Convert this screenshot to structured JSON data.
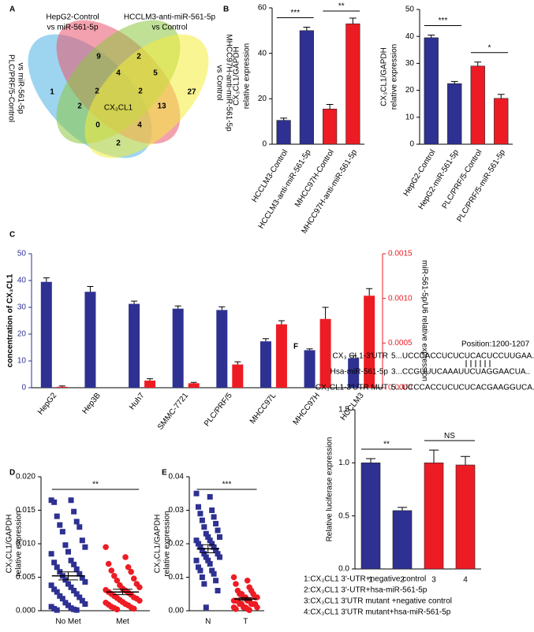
{
  "chart_data": [
    {
      "type": "venn",
      "panel": "A",
      "sets": [
        {
          "label": [
            "PLC/PRF/5-Control",
            "vs miR-561-5p"
          ],
          "color": "#4db3e6"
        },
        {
          "label": [
            "HepG2-Control",
            "vs miR-561-5p"
          ],
          "color": "#e9546b"
        },
        {
          "label": [
            "HCCLM3-anti-miR-561-5p",
            "vs Control"
          ],
          "color": "#8dc63f"
        },
        {
          "label": [
            "MHCC97H-anti-miR-561-5p",
            "vs Control"
          ],
          "color": "#f4ec3a"
        }
      ],
      "values": [
        9,
        2,
        4,
        5,
        1,
        2,
        2,
        27,
        2,
        13,
        0,
        4,
        2
      ],
      "center_label": "CX₃CL1",
      "center_color": "#ed1c24"
    },
    {
      "type": "bar",
      "panel": "B",
      "ylabel": [
        "CX₃CL1/GAPDH",
        "relative expression"
      ],
      "categories": [
        "HCCLM3-Control",
        "HCCLM3-anti-miR-561-5p",
        "MHCC97H-Control",
        "MHCC97H-anti-miR-561-5p"
      ],
      "values": [
        10.5,
        50,
        15.5,
        53
      ],
      "errors": [
        1,
        1.5,
        2,
        2.5
      ],
      "colors": [
        "#2e3192",
        "#2e3192",
        "#ed1c24",
        "#ed1c24"
      ],
      "ylim": [
        0,
        60
      ],
      "yticks": [
        0,
        20,
        40,
        60
      ],
      "annotations": [
        "***",
        "**"
      ]
    },
    {
      "type": "bar",
      "ylabel": [
        "CX₃CL1/GAPDH",
        "relative expression"
      ],
      "categories": [
        "HepG2-Control",
        "HepG2-miR-561-5p",
        "PLC/PRF/5-Control",
        "PLC/PRF/5-miR-561-5p"
      ],
      "values": [
        39.5,
        22.5,
        29,
        17
      ],
      "errors": [
        1,
        0.8,
        1.5,
        1.5
      ],
      "colors": [
        "#2e3192",
        "#2e3192",
        "#ed1c24",
        "#ed1c24"
      ],
      "ylim": [
        0,
        50
      ],
      "yticks": [
        0,
        10,
        20,
        30,
        40,
        50
      ],
      "annotations": [
        "***",
        "*"
      ]
    },
    {
      "type": "grouped-bar",
      "panel": "C",
      "ylabel": "concentration of CX₃CL1",
      "y2label": "miR-561-5p/U6  relative expression",
      "categories": [
        "HepG2",
        "Hep3B",
        "Huh7",
        "SMMC-7721",
        "PLC/PRF/5",
        "MHCC97L",
        "MHCC97H",
        "HCCLM3"
      ],
      "series": [
        {
          "color": "#2e3192",
          "values": [
            39.5,
            35.8,
            31.3,
            29.5,
            29,
            17.3,
            14,
            11
          ],
          "errors": [
            1.5,
            2,
            1,
            1,
            1.2,
            1,
            0.5,
            1
          ]
        },
        {
          "color": "#ed1c24",
          "axis": "y2",
          "values": [
            1e-05,
            0,
            8e-05,
            5e-05,
            0.00026,
            0.00071,
            0.00077,
            0.00103
          ],
          "errors": [
            1e-05,
            0,
            2e-05,
            1e-05,
            3e-05,
            4e-05,
            0.00013,
            8e-05
          ]
        }
      ],
      "ylim": [
        0,
        50
      ],
      "yticks": [
        0,
        10,
        20,
        30,
        40,
        50
      ],
      "y2lim": [
        0,
        0.0015
      ],
      "y2ticks": [
        {
          "value": 0,
          "label": "0.0000"
        },
        {
          "value": 0.0005,
          "label": "0.0005"
        },
        {
          "value": 0.001,
          "label": "0.0010"
        },
        {
          "value": 0.0015,
          "label": "0.0015"
        }
      ]
    },
    {
      "type": "dotplot",
      "panel": "D",
      "ylabel": [
        "CX₃CL1/GAPDH",
        "relative expression"
      ],
      "groups": [
        {
          "name": "No Met",
          "color": "#2e3192",
          "marker": "square",
          "mean": 0.0052,
          "sem": 0.0006,
          "values": [
            0.0165,
            0.0165,
            0.0162,
            0.0148,
            0.0141,
            0.0133,
            0.0128,
            0.0125,
            0.0118,
            0.0105,
            0.0098,
            0.0095,
            0.0088,
            0.0085,
            0.0075,
            0.0072,
            0.0069,
            0.0065,
            0.0062,
            0.0058,
            0.0055,
            0.0052,
            0.0049,
            0.0046,
            0.0043,
            0.004,
            0.0038,
            0.0035,
            0.0032,
            0.003,
            0.0028,
            0.0025,
            0.0022,
            0.002,
            0.0018,
            0.0015,
            0.0012,
            0.001,
            0.0008,
            0.0006,
            0.0004,
            0.0003,
            0.0002,
            0.0001,
            0.0001
          ]
        },
        {
          "name": "Met",
          "color": "#ed1c24",
          "marker": "circle",
          "mean": 0.0028,
          "sem": 0.0004,
          "values": [
            0.0095,
            0.008,
            0.007,
            0.0065,
            0.006,
            0.0058,
            0.0052,
            0.0048,
            0.0045,
            0.004,
            0.0038,
            0.0035,
            0.0033,
            0.0031,
            0.003,
            0.0028,
            0.0027,
            0.0025,
            0.0024,
            0.0022,
            0.002,
            0.0019,
            0.0018,
            0.0016,
            0.0015,
            0.0013,
            0.0012,
            0.001,
            0.0009,
            0.0008,
            0.0006,
            0.0005,
            0.0004,
            0.0003,
            0.0002
          ]
        }
      ],
      "ylim": [
        0,
        0.02
      ],
      "yticks": [
        {
          "value": 0,
          "label": "0.000"
        },
        {
          "value": 0.005,
          "label": "0.005"
        },
        {
          "value": 0.01,
          "label": "0.010"
        },
        {
          "value": 0.015,
          "label": "0.015"
        },
        {
          "value": 0.02,
          "label": "0.020"
        }
      ],
      "annotations": [
        "**"
      ]
    },
    {
      "type": "dotplot",
      "panel": "E",
      "ylabel": [
        "CX₃CL1/GAPDH",
        "relative expression"
      ],
      "groups": [
        {
          "name": "N",
          "color": "#2e3192",
          "marker": "square",
          "mean": 0.0185,
          "sem": 0.0012,
          "values": [
            0.035,
            0.034,
            0.031,
            0.03,
            0.029,
            0.028,
            0.027,
            0.026,
            0.025,
            0.024,
            0.023,
            0.022,
            0.022,
            0.021,
            0.021,
            0.02,
            0.02,
            0.019,
            0.019,
            0.018,
            0.018,
            0.017,
            0.017,
            0.016,
            0.016,
            0.015,
            0.015,
            0.014,
            0.013,
            0.012,
            0.012,
            0.011,
            0.01,
            0.009,
            0.008,
            0.006,
            0.001
          ]
        },
        {
          "name": "T",
          "color": "#ed1c24",
          "marker": "circle",
          "mean": 0.0035,
          "sem": 0.0004,
          "values": [
            0.01,
            0.009,
            0.008,
            0.007,
            0.006,
            0.006,
            0.005,
            0.005,
            0.005,
            0.004,
            0.004,
            0.004,
            0.004,
            0.003,
            0.003,
            0.003,
            0.003,
            0.003,
            0.002,
            0.002,
            0.002,
            0.002,
            0.002,
            0.001,
            0.001,
            0.001,
            0.001,
            0.0005,
            0.0005,
            0.0002
          ]
        }
      ],
      "ylim": [
        0,
        0.04
      ],
      "yticks": [
        {
          "value": 0,
          "label": "0.00"
        },
        {
          "value": 0.01,
          "label": "0.01"
        },
        {
          "value": 0.02,
          "label": "0.02"
        },
        {
          "value": 0.03,
          "label": "0.03"
        },
        {
          "value": 0.04,
          "label": "0.04"
        }
      ],
      "annotations": [
        "***"
      ]
    },
    {
      "type": "bar",
      "panel": "F",
      "ylabel": [
        "Relative luciferase expression"
      ],
      "alignment": {
        "position": "Position:1200-1207",
        "rows": [
          {
            "label": "CX₃ CL1-3'UTR",
            "sequence": "5...UCCCACCUCUCUCACUCCUUGAA.."
          },
          {
            "label": "Hsa-miR-561-5p",
            "sequence": "3...CCGUUUCAAAUUCUAGGAACUA.."
          },
          {
            "label": "CX₃CL1-3'UTR  MUT",
            "sequence": "5...UCCCACCUCUCUCACGAAGGUCA.."
          }
        ]
      },
      "categories": [
        "1",
        "2",
        "3",
        "4"
      ],
      "values": [
        1.0,
        0.55,
        1.0,
        0.98
      ],
      "errors": [
        0.04,
        0.03,
        0.12,
        0.08
      ],
      "colors": [
        "#2e3192",
        "#2e3192",
        "#ed1c24",
        "#ed1c24"
      ],
      "ylim": [
        0,
        1.5
      ],
      "yticks": [
        {
          "value": 0,
          "label": "0.0"
        },
        {
          "value": 0.5,
          "label": "0.5"
        },
        {
          "value": 1,
          "label": "1.0"
        },
        {
          "value": 1.5,
          "label": "1.5"
        }
      ],
      "annotations": [
        "**",
        "NS"
      ],
      "notes": [
        "1:CX₃CL1 3'-UTR+negative control",
        "2:CX₃CL1 3'-UTR+hsa-miR-561-5p",
        "3:CX₃CL1 3'UTR mutant +negative control",
        "4:CX₃CL1 3'UTR mutant+hsa-miR-561-5p"
      ]
    }
  ]
}
